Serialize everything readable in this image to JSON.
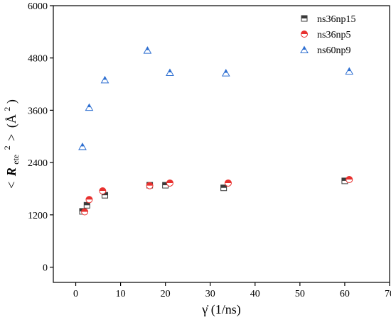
{
  "chart_data": {
    "type": "scatter",
    "xlabel": "γ̇ (1/ns)",
    "ylabel_parts": {
      "open": "<",
      "var": "R",
      "sub": "ete",
      "sup": "2",
      "mid": ">",
      "unit_open": "(Å",
      "unit_sup": "2",
      "unit_close": ")"
    },
    "xlim": [
      -5,
      70
    ],
    "ylim": [
      -350,
      6000
    ],
    "xticks": [
      0,
      10,
      20,
      30,
      40,
      50,
      60,
      70
    ],
    "yticks": [
      0,
      1200,
      2400,
      3600,
      4800,
      6000
    ],
    "legend_position": "top-right",
    "series": [
      {
        "name": "ns36np15",
        "marker": "square-half",
        "color": "#3a3a3a",
        "points": [
          [
            1.5,
            1280
          ],
          [
            2.5,
            1420
          ],
          [
            6.5,
            1650
          ],
          [
            16.5,
            1880
          ],
          [
            20,
            1880
          ],
          [
            33,
            1820
          ],
          [
            60,
            1980
          ]
        ]
      },
      {
        "name": "ns36np5",
        "marker": "circle-half",
        "color": "#e8312f",
        "points": [
          [
            2,
            1270
          ],
          [
            3,
            1550
          ],
          [
            6,
            1750
          ],
          [
            16.5,
            1870
          ],
          [
            21,
            1930
          ],
          [
            34,
            1930
          ],
          [
            61,
            2010
          ]
        ]
      },
      {
        "name": "ns60np9",
        "marker": "triangle-half",
        "color": "#2e6fd1",
        "points": [
          [
            1.5,
            2770
          ],
          [
            3,
            3670
          ],
          [
            6.5,
            4300
          ],
          [
            16,
            4980
          ],
          [
            21,
            4470
          ],
          [
            33.5,
            4460
          ],
          [
            61,
            4500
          ]
        ]
      }
    ]
  }
}
